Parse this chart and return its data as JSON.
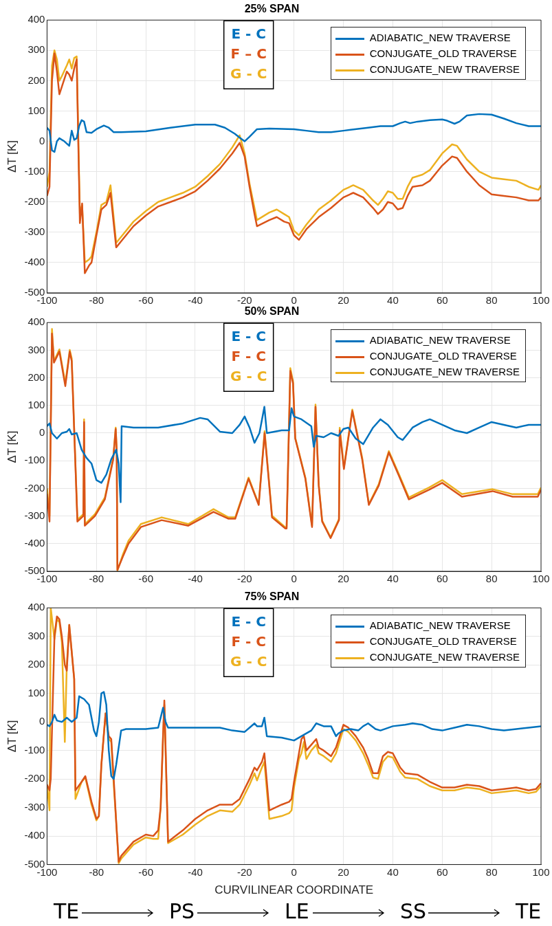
{
  "chart_data": [
    {
      "type": "line",
      "title": "25% SPAN",
      "ylabel": "ΔT [K]",
      "xlim": [
        -100,
        100
      ],
      "ylim": [
        -500,
        400
      ],
      "xticks": [
        -100,
        -80,
        -60,
        -40,
        -20,
        0,
        20,
        40,
        60,
        80,
        100
      ],
      "yticks": [
        -500,
        -400,
        -300,
        -200,
        -100,
        0,
        100,
        200,
        300,
        400
      ],
      "grid": true,
      "legend": "top right",
      "annotations": [
        "E - C",
        "F – C",
        "G - C"
      ],
      "series": [
        {
          "name": "ADIABATIC_NEW TRAVERSE",
          "color": "#0072bd",
          "x": [
            -100,
            -99,
            -98,
            -97,
            -96,
            -95,
            -93,
            -91,
            -90,
            -89,
            -88,
            -87,
            -86,
            -85,
            -84,
            -82,
            -80,
            -77,
            -75,
            -73,
            -70,
            -60,
            -50,
            -40,
            -32,
            -28,
            -24,
            -22,
            -20,
            -18,
            -15,
            -10,
            0,
            5,
            10,
            15,
            20,
            30,
            35,
            40,
            43,
            45,
            47,
            50,
            55,
            60,
            62,
            65,
            67,
            70,
            75,
            80,
            85,
            90,
            95,
            100
          ],
          "values": [
            45,
            35,
            -30,
            -35,
            0,
            10,
            0,
            -15,
            35,
            5,
            10,
            50,
            70,
            65,
            30,
            28,
            40,
            52,
            45,
            30,
            30,
            33,
            45,
            55,
            55,
            45,
            25,
            12,
            0,
            15,
            40,
            42,
            40,
            35,
            30,
            30,
            35,
            45,
            50,
            50,
            60,
            65,
            60,
            65,
            70,
            72,
            68,
            58,
            65,
            85,
            90,
            88,
            75,
            60,
            50,
            50
          ]
        },
        {
          "name": "CONJUGATE_OLD TRAVERSE",
          "color": "#d95319",
          "x": [
            -100,
            -99,
            -98,
            -97,
            -96,
            -95,
            -94,
            -92,
            -91,
            -90,
            -89,
            -88,
            -86.7,
            -85.8,
            -84.7,
            -83,
            -82,
            -80,
            -78,
            -76,
            -74.3,
            -72,
            -70,
            -65,
            -60,
            -55,
            -50,
            -45,
            -40,
            -35,
            -30,
            -25,
            -22,
            -20,
            -18,
            -16,
            -15,
            -10,
            -7,
            -4,
            -2,
            0,
            2,
            5,
            10,
            15,
            20,
            24,
            28,
            32,
            34,
            36,
            38,
            40,
            42,
            44,
            46,
            48,
            52,
            55,
            60,
            64,
            66,
            70,
            75,
            80,
            85,
            90,
            95,
            99,
            100
          ],
          "values": [
            -180,
            -150,
            200,
            290,
            230,
            155,
            180,
            230,
            220,
            200,
            240,
            270,
            -270,
            -205,
            -435,
            -410,
            -400,
            -310,
            -225,
            -210,
            -170,
            -350,
            -330,
            -280,
            -245,
            -215,
            -200,
            -185,
            -165,
            -130,
            -90,
            -40,
            -5,
            -50,
            -150,
            -240,
            -280,
            -260,
            -250,
            -265,
            -270,
            -310,
            -325,
            -290,
            -250,
            -220,
            -185,
            -170,
            -185,
            -220,
            -240,
            -225,
            -200,
            -205,
            -225,
            -220,
            -180,
            -150,
            -145,
            -130,
            -80,
            -50,
            -55,
            -100,
            -145,
            -175,
            -180,
            -185,
            -195,
            -195,
            -185
          ]
        },
        {
          "name": "CONJUGATE_NEW TRAVERSE",
          "color": "#edb120",
          "x": [
            -100,
            -99,
            -98,
            -97,
            -96,
            -95,
            -94,
            -92,
            -91,
            -90,
            -89,
            -88,
            -86.7,
            -85.8,
            -84.7,
            -83,
            -82,
            -80,
            -78,
            -76,
            -74.3,
            -72,
            -70,
            -65,
            -60,
            -55,
            -50,
            -45,
            -40,
            -35,
            -30,
            -25,
            -22,
            -20,
            -18,
            -16,
            -15,
            -10,
            -7,
            -4,
            -2,
            0,
            2,
            5,
            10,
            15,
            20,
            24,
            28,
            32,
            34,
            36,
            38,
            40,
            42,
            44,
            46,
            48,
            52,
            55,
            60,
            64,
            66,
            70,
            75,
            80,
            85,
            90,
            95,
            99,
            100
          ],
          "values": [
            -150,
            -100,
            250,
            300,
            270,
            200,
            215,
            250,
            270,
            240,
            275,
            280,
            -240,
            -210,
            -400,
            -390,
            -380,
            -300,
            -210,
            -200,
            -145,
            -335,
            -315,
            -265,
            -230,
            -200,
            -185,
            -170,
            -150,
            -115,
            -75,
            -20,
            20,
            -40,
            -140,
            -220,
            -260,
            -235,
            -225,
            -240,
            -250,
            -295,
            -310,
            -275,
            -225,
            -195,
            -160,
            -145,
            -160,
            -195,
            -210,
            -190,
            -165,
            -170,
            -190,
            -190,
            -150,
            -120,
            -110,
            -95,
            -40,
            -10,
            -15,
            -60,
            -100,
            -120,
            -125,
            -130,
            -150,
            -160,
            -145
          ]
        }
      ]
    },
    {
      "type": "line",
      "title": "50% SPAN",
      "ylabel": "ΔT [K]",
      "xlim": [
        -100,
        100
      ],
      "ylim": [
        -500,
        400
      ],
      "xticks": [
        -100,
        -80,
        -60,
        -40,
        -20,
        0,
        20,
        40,
        60,
        80,
        100
      ],
      "yticks": [
        -500,
        -400,
        -300,
        -200,
        -100,
        0,
        100,
        200,
        300,
        400
      ],
      "grid": true,
      "legend": "top right",
      "annotations": [
        "E - C",
        "F - C",
        "G - C"
      ],
      "series": [
        {
          "name": "ADIABATIC_NEW TRAVERSE",
          "color": "#0072bd",
          "x": [
            -100,
            -99,
            -98,
            -96,
            -94,
            -92,
            -91,
            -90,
            -88,
            -86,
            -84,
            -82,
            -80,
            -78,
            -76,
            -74,
            -72,
            -71,
            -70.2,
            -69.8,
            -65,
            -55,
            -45,
            -38,
            -35,
            -30,
            -25,
            -22,
            -20,
            -18,
            -16,
            -14,
            -12,
            -11,
            -8,
            -5,
            -2,
            -1,
            0,
            3,
            7,
            8,
            9,
            12,
            15,
            18,
            20,
            22,
            25,
            28,
            32,
            35,
            38,
            42,
            44,
            48,
            52,
            55,
            60,
            65,
            70,
            75,
            80,
            85,
            90,
            95,
            100
          ],
          "values": [
            25,
            35,
            0,
            -20,
            0,
            5,
            15,
            -5,
            0,
            -60,
            -90,
            -110,
            -170,
            -180,
            -150,
            -95,
            -60,
            -110,
            -250,
            25,
            20,
            20,
            35,
            55,
            50,
            5,
            0,
            30,
            60,
            20,
            -35,
            0,
            95,
            0,
            5,
            10,
            10,
            90,
            60,
            50,
            25,
            -50,
            -10,
            -15,
            0,
            -10,
            15,
            20,
            -20,
            -40,
            20,
            50,
            30,
            -15,
            -25,
            20,
            40,
            50,
            30,
            10,
            0,
            20,
            40,
            30,
            20,
            30,
            30
          ]
        },
        {
          "name": "CONJUGATE_OLD TRAVERSE",
          "color": "#d95319",
          "x": [
            -100,
            -99,
            -98,
            -97.2,
            -95,
            -92.6,
            -90.8,
            -90,
            -87.7,
            -85.3,
            -85,
            -84.7,
            -80.6,
            -76.6,
            -73.2,
            -72.2,
            -71.8,
            -71.5,
            -69.2,
            -67,
            -62,
            -53.6,
            -42.8,
            -32.6,
            -26.5,
            -23.8,
            -18.4,
            -14.3,
            -11.9,
            -8.9,
            -3.5,
            -3,
            -1.5,
            -0.4,
            0.5,
            4.6,
            7.3,
            8.7,
            10,
            11.4,
            14.8,
            18.2,
            18.5,
            20.2,
            23.6,
            27.6,
            30.3,
            34.3,
            38.4,
            42.5,
            46.5,
            54.7,
            60,
            68,
            80.4,
            88.5,
            98.7,
            100
          ],
          "values": [
            -220,
            -320,
            360,
            255,
            295,
            170,
            295,
            260,
            -320,
            -300,
            40,
            -335,
            -300,
            -240,
            -95,
            15,
            -60,
            -495,
            -445,
            -400,
            -340,
            -315,
            -335,
            -285,
            -310,
            -310,
            -165,
            -260,
            0,
            -305,
            -345,
            -345,
            225,
            180,
            -20,
            -165,
            -340,
            95,
            -190,
            -320,
            -380,
            -315,
            10,
            -130,
            80,
            -95,
            -260,
            -190,
            -70,
            -155,
            -240,
            -205,
            -180,
            -230,
            -210,
            -230,
            -230,
            -205
          ]
        },
        {
          "name": "CONJUGATE_NEW TRAVERSE",
          "color": "#edb120",
          "x": [
            -100,
            -99,
            -98,
            -97.2,
            -95,
            -92.6,
            -90.8,
            -90,
            -87.7,
            -85.3,
            -85,
            -84.7,
            -80.6,
            -76.6,
            -73.2,
            -72.2,
            -71.8,
            -71.5,
            -69.2,
            -67,
            -62,
            -53.6,
            -42.8,
            -32.6,
            -26.5,
            -23.8,
            -18.4,
            -14.3,
            -11.9,
            -8.9,
            -3.5,
            -3,
            -1.5,
            -0.4,
            0.5,
            4.6,
            7.3,
            8.7,
            10,
            11.4,
            14.8,
            18.2,
            18.5,
            20.2,
            23.6,
            27.6,
            30.3,
            34.3,
            38.4,
            42.5,
            46.5,
            54.7,
            60,
            68,
            80.4,
            88.5,
            98.7,
            100
          ],
          "values": [
            -200,
            -300,
            377,
            260,
            303,
            180,
            301,
            270,
            -314,
            -293,
            50,
            -330,
            -293,
            -233,
            -89,
            20,
            -60,
            -497,
            -437,
            -389,
            -329,
            -305,
            -329,
            -275,
            -305,
            -305,
            -161,
            -257,
            7,
            -299,
            -341,
            -341,
            235,
            187,
            -17,
            -161,
            -335,
            103,
            -185,
            -317,
            -377,
            -311,
            19,
            -125,
            85,
            -89,
            -257,
            -185,
            -65,
            -149,
            -233,
            -197,
            -170,
            -221,
            -203,
            -221,
            -221,
            -197
          ]
        }
      ]
    },
    {
      "type": "line",
      "title": "75% SPAN",
      "xlabel": "CURVILINEAR COORDINATE",
      "ylabel": "ΔT [K]",
      "xlim": [
        -100,
        100
      ],
      "ylim": [
        -500,
        400
      ],
      "xticks": [
        -100,
        -80,
        -60,
        -40,
        -20,
        0,
        20,
        40,
        60,
        80,
        100
      ],
      "yticks": [
        -500,
        -400,
        -300,
        -200,
        -100,
        0,
        100,
        200,
        300,
        400
      ],
      "grid": true,
      "legend": "top right",
      "annotations": [
        "E - C",
        "F - C",
        "G - C",
        "TE",
        "PS",
        "LE",
        "SS",
        "TE"
      ],
      "series": [
        {
          "name": "ADIABATIC_NEW TRAVERSE",
          "color": "#0072bd",
          "x": [
            -100,
            -99,
            -98,
            -97,
            -96,
            -94,
            -92,
            -90,
            -88,
            -87,
            -85,
            -83,
            -81,
            -80,
            -79,
            -78,
            -77,
            -76,
            -75,
            -74,
            -73,
            -72,
            -70,
            -68,
            -60,
            -55,
            -53,
            -52,
            -51,
            -40,
            -30,
            -25,
            -20,
            -18,
            -16,
            -15,
            -13,
            -12,
            -11,
            -5,
            0,
            3,
            7,
            9,
            12,
            15,
            17,
            18,
            20,
            23,
            26,
            28,
            30,
            33,
            35,
            40,
            45,
            48,
            52,
            56,
            60,
            65,
            70,
            75,
            80,
            85,
            90,
            95,
            100
          ],
          "values": [
            -10,
            -15,
            0,
            25,
            5,
            0,
            15,
            0,
            15,
            90,
            80,
            60,
            -30,
            -50,
            0,
            100,
            105,
            60,
            -100,
            -190,
            -200,
            -150,
            -30,
            -25,
            -25,
            -20,
            50,
            0,
            -20,
            -20,
            -20,
            -30,
            -35,
            -20,
            -5,
            -15,
            -15,
            15,
            -50,
            -55,
            -65,
            -50,
            -30,
            -5,
            -15,
            -15,
            -50,
            -40,
            -30,
            -25,
            -30,
            -15,
            -5,
            -25,
            -30,
            -15,
            -10,
            -5,
            -10,
            -25,
            -30,
            -20,
            -10,
            -15,
            -25,
            -30,
            -25,
            -20,
            -15
          ]
        },
        {
          "name": "CONJUGATE_OLD TRAVERSE",
          "color": "#d95319",
          "x": [
            -100,
            -99,
            -98.5,
            -97,
            -96,
            -95,
            -94,
            -92.8,
            -92,
            -91,
            -89,
            -88.5,
            -86,
            -84.5,
            -82,
            -80,
            -79,
            -78,
            -76.3,
            -75,
            -74,
            -73,
            -72,
            -71,
            -70,
            -65,
            -60,
            -57,
            -55,
            -54,
            -53,
            -52.5,
            -51,
            -48,
            -45,
            -40,
            -35,
            -30,
            -25,
            -22,
            -18,
            -16,
            -15,
            -13,
            -12,
            -10,
            -5,
            -2,
            -1,
            0,
            2,
            3,
            4,
            5,
            7,
            9,
            10,
            12,
            15,
            17,
            20,
            22,
            25,
            28,
            30,
            32,
            34,
            36,
            38,
            40,
            43,
            45,
            50,
            55,
            60,
            65,
            70,
            75,
            80,
            85,
            90,
            95,
            98,
            100
          ],
          "values": [
            -220,
            -240,
            -200,
            300,
            370,
            360,
            300,
            200,
            180,
            340,
            150,
            -240,
            -210,
            -190,
            -280,
            -340,
            -330,
            -150,
            30,
            -50,
            -60,
            -200,
            -350,
            -490,
            -470,
            -420,
            -395,
            -400,
            -380,
            -300,
            -40,
            75,
            -420,
            -400,
            -380,
            -340,
            -310,
            -290,
            -290,
            -270,
            -200,
            -160,
            -170,
            -140,
            -110,
            -310,
            -290,
            -280,
            -270,
            -210,
            -110,
            -60,
            -50,
            -100,
            -80,
            -60,
            -90,
            -100,
            -120,
            -90,
            -10,
            -20,
            -50,
            -90,
            -130,
            -180,
            -180,
            -120,
            -105,
            -110,
            -160,
            -180,
            -185,
            -210,
            -230,
            -230,
            -220,
            -225,
            -240,
            -235,
            -230,
            -240,
            -235,
            -215
          ]
        },
        {
          "name": "CONJUGATE_NEW TRAVERSE",
          "color": "#edb120",
          "x": [
            -100,
            -99,
            -98.5,
            -97,
            -96,
            -95,
            -94,
            -92.8,
            -92,
            -91,
            -89,
            -88.5,
            -86,
            -84.5,
            -82,
            -80,
            -79,
            -78,
            -76.3,
            -75,
            -74,
            -73,
            -72,
            -71,
            -70,
            -65,
            -60,
            -57,
            -55,
            -54,
            -53,
            -52.5,
            -51,
            -48,
            -45,
            -40,
            -35,
            -30,
            -25,
            -22,
            -18,
            -16,
            -15,
            -13,
            -12,
            -10,
            -5,
            -2,
            -1,
            0,
            2,
            3,
            4,
            5,
            7,
            9,
            10,
            12,
            15,
            17,
            20,
            22,
            25,
            28,
            30,
            32,
            34,
            36,
            38,
            40,
            43,
            45,
            50,
            55,
            60,
            65,
            70,
            75,
            80,
            85,
            90,
            95,
            98,
            100
          ],
          "values": [
            -220,
            -310,
            400,
            290,
            360,
            350,
            280,
            -70,
            200,
            340,
            150,
            -270,
            -210,
            -195,
            -290,
            -345,
            -330,
            -150,
            30,
            -60,
            -70,
            -220,
            -350,
            -495,
            -480,
            -430,
            -405,
            -410,
            -410,
            -300,
            -50,
            60,
            -425,
            -410,
            -395,
            -360,
            -330,
            -310,
            -315,
            -290,
            -220,
            -180,
            -205,
            -160,
            -140,
            -340,
            -330,
            -320,
            -310,
            -230,
            -130,
            -110,
            -70,
            -130,
            -100,
            -80,
            -110,
            -120,
            -140,
            -110,
            -25,
            -35,
            -65,
            -110,
            -150,
            -195,
            -200,
            -140,
            -120,
            -125,
            -175,
            -195,
            -200,
            -225,
            -240,
            -240,
            -230,
            -235,
            -250,
            -245,
            -240,
            -250,
            -245,
            -225
          ]
        }
      ]
    }
  ]
}
